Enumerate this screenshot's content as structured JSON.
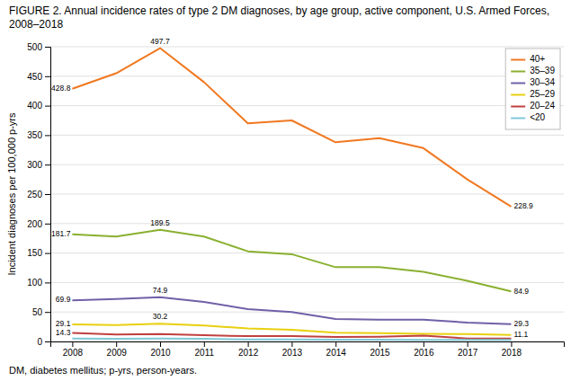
{
  "chart_data": {
    "type": "line",
    "title": "FIGURE 2. Annual incidence rates of type 2 DM diagnoses, by age group, active component, U.S. Armed Forces, 2008–2018",
    "ylabel": "Incident diagnoses per 100,000 p-yrs",
    "footnote": "DM, diabetes mellitus; p-yrs, person-years.",
    "x": [
      2008,
      2009,
      2010,
      2011,
      2012,
      2013,
      2014,
      2015,
      2016,
      2017,
      2018
    ],
    "series": [
      {
        "name": "40+",
        "color": "#f07820",
        "values": [
          428.8,
          455.0,
          497.7,
          440.0,
          370.0,
          375.0,
          338.0,
          345.0,
          328.0,
          275.0,
          228.9
        ]
      },
      {
        "name": "35–39",
        "color": "#8ab030",
        "values": [
          181.7,
          178.0,
          189.5,
          178.0,
          153.0,
          148.0,
          126.0,
          126.0,
          118.0,
          103.0,
          84.9
        ]
      },
      {
        "name": "30–34",
        "color": "#7060a8",
        "values": [
          69.9,
          72.0,
          74.9,
          67.0,
          55.0,
          50.0,
          38.0,
          37.0,
          37.0,
          32.0,
          29.3
        ]
      },
      {
        "name": "25–29",
        "color": "#e8d010",
        "values": [
          29.1,
          28.0,
          30.2,
          27.0,
          22.0,
          20.0,
          15.0,
          14.0,
          13.0,
          12.5,
          11.1
        ]
      },
      {
        "name": "20–24",
        "color": "#c04040",
        "values": [
          14.3,
          12.0,
          12.5,
          10.5,
          9.0,
          9.0,
          7.5,
          8.0,
          10.0,
          5.0,
          5.0
        ]
      },
      {
        "name": "<20",
        "color": "#80c8d8",
        "values": [
          5.0,
          4.5,
          5.0,
          4.5,
          3.5,
          3.5,
          3.0,
          3.0,
          2.5,
          2.5,
          2.5
        ]
      }
    ],
    "annotations": [
      {
        "text": "428.8",
        "x": 2008,
        "y": 428.8
      },
      {
        "text": "181.7",
        "x": 2008,
        "y": 181.7
      },
      {
        "text": "69.9",
        "x": 2008,
        "y": 69.9
      },
      {
        "text": "29.1",
        "x": 2008,
        "y": 29.1
      },
      {
        "text": "14.3",
        "x": 2008,
        "y": 14.3
      },
      {
        "text": "497.7",
        "x": 2010,
        "y": 497.7
      },
      {
        "text": "189.5",
        "x": 2010,
        "y": 189.5
      },
      {
        "text": "74.9",
        "x": 2010,
        "y": 74.9
      },
      {
        "text": "30.2",
        "x": 2010,
        "y": 30.2
      },
      {
        "text": "228.9",
        "x": 2018,
        "y": 228.9
      },
      {
        "text": "84.9",
        "x": 2018,
        "y": 84.9
      },
      {
        "text": "29.3",
        "x": 2018,
        "y": 29.3
      },
      {
        "text": "11.1",
        "x": 2018,
        "y": 11.1
      }
    ],
    "xlim": [
      2007.5,
      2019.2
    ],
    "xticks": [
      2008,
      2009,
      2010,
      2011,
      2012,
      2013,
      2014,
      2015,
      2016,
      2017,
      2018
    ],
    "ylim": [
      0,
      500
    ],
    "yticks": [
      0,
      50,
      100,
      150,
      200,
      250,
      300,
      350,
      400,
      450,
      500
    ],
    "grid": true,
    "legend": "upper right"
  }
}
